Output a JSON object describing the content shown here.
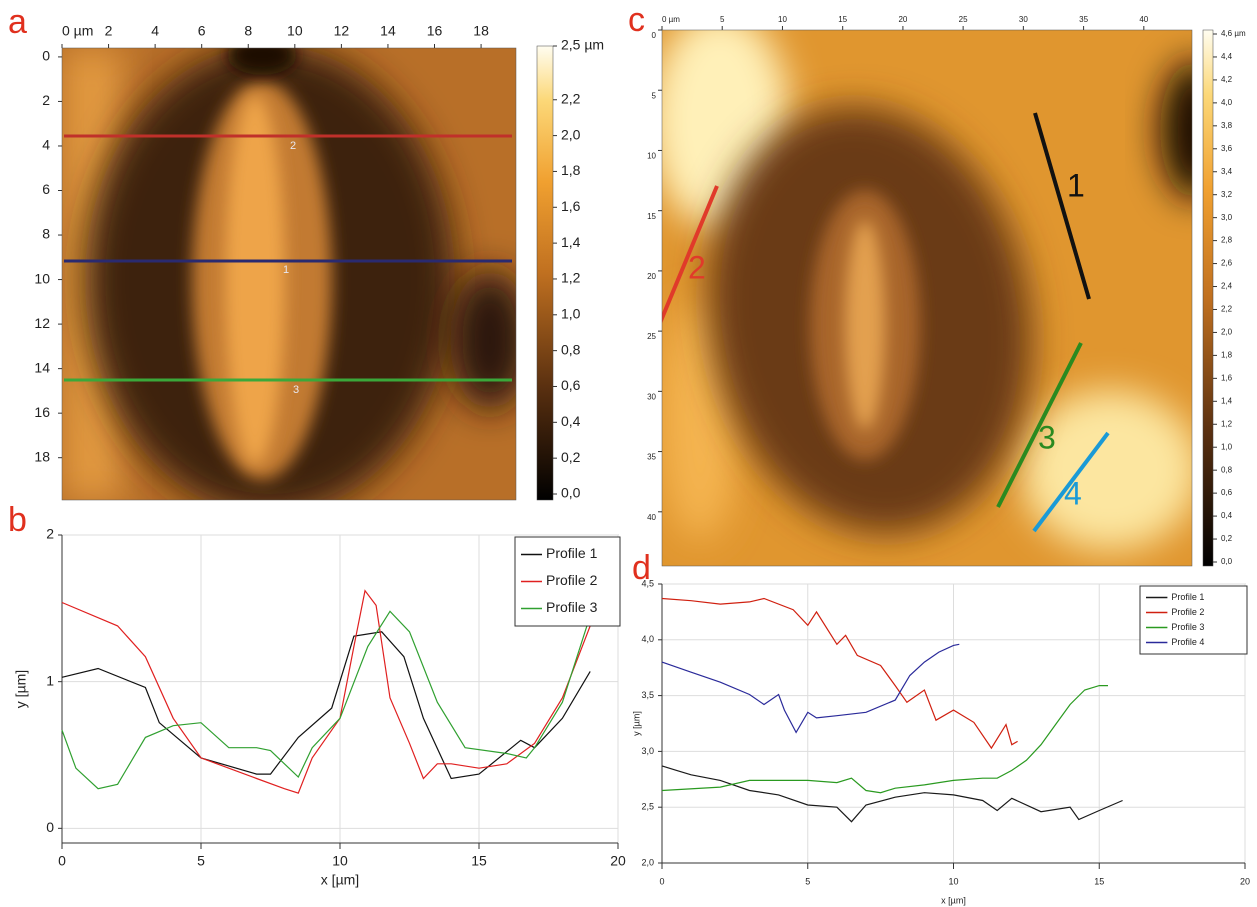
{
  "chart_data": [
    {
      "type": "heatmap",
      "panel": "a",
      "xlim": [
        0,
        19.5
      ],
      "xticks": [
        {
          "value": 0,
          "label": "0 µm"
        },
        2,
        4,
        6,
        8,
        10,
        12,
        14,
        16,
        18
      ],
      "ylim": [
        -0.4,
        19.9
      ],
      "yticks": [
        0,
        2,
        4,
        6,
        8,
        10,
        12,
        14,
        16,
        18
      ],
      "zlim": [
        0,
        2.5
      ],
      "zticks": [
        {
          "value": 2.5,
          "label": "2,5 µm"
        },
        {
          "value": 2.2,
          "label": "2,2"
        },
        {
          "value": 2.0,
          "label": "2,0"
        },
        {
          "value": 1.8,
          "label": "1,8"
        },
        {
          "value": 1.6,
          "label": "1,6"
        },
        {
          "value": 1.4,
          "label": "1,4"
        },
        {
          "value": 1.2,
          "label": "1,2"
        },
        {
          "value": 1.0,
          "label": "1,0"
        },
        {
          "value": 0.8,
          "label": "0,8"
        },
        {
          "value": 0.6,
          "label": "0,6"
        },
        {
          "value": 0.4,
          "label": "0,4"
        },
        {
          "value": 0.2,
          "label": "0,2"
        },
        {
          "value": 0.0,
          "label": "0,0"
        }
      ],
      "line_labels": [
        "2",
        "1",
        "3"
      ]
    },
    {
      "type": "line",
      "panel": "b",
      "xlabel": "x [µm]",
      "ylabel": "y [µm]",
      "xlim": [
        0,
        20
      ],
      "xticks": [
        0,
        5,
        10,
        15,
        20
      ],
      "ylim": [
        -0.1,
        2.0
      ],
      "yticks": [
        0,
        1,
        2
      ],
      "grid": true,
      "legend": "top-right",
      "series": [
        {
          "name": "Profile 1",
          "color": "#111111",
          "x": [
            0,
            1.3,
            3,
            3.5,
            5,
            7,
            7.5,
            8.5,
            9.7,
            10.5,
            11.5,
            12.3,
            13,
            14,
            15,
            16.5,
            17,
            18,
            19
          ],
          "values": [
            1.03,
            1.09,
            0.96,
            0.72,
            0.48,
            0.37,
            0.37,
            0.62,
            0.82,
            1.31,
            1.34,
            1.17,
            0.75,
            0.34,
            0.37,
            0.6,
            0.55,
            0.75,
            1.07
          ]
        },
        {
          "name": "Profile 2",
          "color": "#e02020",
          "x": [
            0,
            2,
            3,
            4,
            5,
            6,
            7,
            8,
            8.5,
            9,
            10,
            10.5,
            10.9,
            11.3,
            11.8,
            12.5,
            13,
            13.5,
            14,
            15,
            16,
            17,
            18,
            19
          ],
          "values": [
            1.54,
            1.38,
            1.17,
            0.75,
            0.48,
            0.41,
            0.34,
            0.27,
            0.24,
            0.48,
            0.75,
            1.24,
            1.62,
            1.52,
            0.89,
            0.58,
            0.34,
            0.44,
            0.44,
            0.41,
            0.44,
            0.58,
            0.89,
            1.38
          ]
        },
        {
          "name": "Profile 3",
          "color": "#30a030",
          "x": [
            0,
            0.5,
            1.3,
            2,
            3,
            4,
            5,
            6,
            7,
            7.5,
            8.5,
            9,
            10,
            11,
            11.8,
            12.5,
            13.5,
            14.5,
            16,
            16.7,
            17,
            18,
            19
          ],
          "values": [
            0.67,
            0.41,
            0.27,
            0.3,
            0.62,
            0.7,
            0.72,
            0.55,
            0.55,
            0.53,
            0.35,
            0.55,
            0.75,
            1.24,
            1.48,
            1.34,
            0.86,
            0.55,
            0.51,
            0.48,
            0.55,
            0.86,
            1.45
          ]
        }
      ]
    },
    {
      "type": "heatmap",
      "panel": "c",
      "xlim": [
        0,
        44
      ],
      "xticks": [
        {
          "value": 0,
          "label": "0 µm"
        },
        5,
        10,
        15,
        20,
        25,
        30,
        35,
        40
      ],
      "ylim": [
        0,
        44.5
      ],
      "yticks": [
        0,
        5,
        10,
        15,
        20,
        25,
        30,
        35,
        40
      ],
      "zlim": [
        0,
        4.6
      ],
      "zticks": [
        {
          "value": 4.6,
          "label": "4,6 µm"
        },
        {
          "value": 4.4,
          "label": "4,4"
        },
        {
          "value": 4.2,
          "label": "4,2"
        },
        {
          "value": 4.0,
          "label": "4,0"
        },
        {
          "value": 3.8,
          "label": "3,8"
        },
        {
          "value": 3.6,
          "label": "3,6"
        },
        {
          "value": 3.4,
          "label": "3,4"
        },
        {
          "value": 3.2,
          "label": "3,2"
        },
        {
          "value": 3.0,
          "label": "3,0"
        },
        {
          "value": 2.8,
          "label": "2,8"
        },
        {
          "value": 2.6,
          "label": "2,6"
        },
        {
          "value": 2.4,
          "label": "2,4"
        },
        {
          "value": 2.2,
          "label": "2,2"
        },
        {
          "value": 2.0,
          "label": "2,0"
        },
        {
          "value": 1.8,
          "label": "1,8"
        },
        {
          "value": 1.6,
          "label": "1,6"
        },
        {
          "value": 1.4,
          "label": "1,4"
        },
        {
          "value": 1.2,
          "label": "1,2"
        },
        {
          "value": 1.0,
          "label": "1,0"
        },
        {
          "value": 0.8,
          "label": "0,8"
        },
        {
          "value": 0.6,
          "label": "0,6"
        },
        {
          "value": 0.4,
          "label": "0,4"
        },
        {
          "value": 0.2,
          "label": "0,2"
        },
        {
          "value": 0.0,
          "label": "0,0"
        }
      ],
      "line_labels": [
        "1",
        "2",
        "3",
        "4"
      ]
    },
    {
      "type": "line",
      "panel": "d",
      "xlabel": "x [µm]",
      "ylabel": "y [µm]",
      "xlim": [
        0,
        20
      ],
      "xticks": [
        0,
        5,
        10,
        15,
        20
      ],
      "ylim": [
        2.0,
        4.5
      ],
      "yticks": [
        {
          "value": 2.0,
          "label": "2,0"
        },
        {
          "value": 2.5,
          "label": "2,5"
        },
        {
          "value": 3.0,
          "label": "3,0"
        },
        {
          "value": 3.5,
          "label": "3,5"
        },
        {
          "value": 4.0,
          "label": "4,0"
        },
        {
          "value": 4.5,
          "label": "4,5"
        }
      ],
      "grid": true,
      "legend": "top-right",
      "series": [
        {
          "name": "Profile 1",
          "color": "#1a1a1a",
          "x": [
            0,
            0.5,
            1,
            2,
            3,
            4,
            5,
            6,
            6.5,
            7,
            8,
            9,
            10,
            11,
            11.5,
            12,
            13,
            14,
            14.3,
            15,
            15.8
          ],
          "values": [
            2.87,
            2.83,
            2.79,
            2.74,
            2.65,
            2.61,
            2.52,
            2.5,
            2.37,
            2.52,
            2.59,
            2.63,
            2.61,
            2.56,
            2.47,
            2.58,
            2.46,
            2.5,
            2.39,
            2.47,
            2.56
          ]
        },
        {
          "name": "Profile 2",
          "color": "#d02010",
          "x": [
            0,
            1,
            2,
            3,
            3.5,
            4.5,
            5,
            5.3,
            6,
            6.3,
            6.7,
            7.5,
            8,
            8.4,
            9,
            9.4,
            10,
            10.7,
            11.3,
            11.8,
            12,
            12.2
          ],
          "values": [
            4.37,
            4.35,
            4.32,
            4.34,
            4.37,
            4.27,
            4.13,
            4.25,
            3.96,
            4.04,
            3.86,
            3.77,
            3.59,
            3.44,
            3.55,
            3.28,
            3.37,
            3.26,
            3.03,
            3.24,
            3.06,
            3.09
          ]
        },
        {
          "name": "Profile 3",
          "color": "#2a9a20",
          "x": [
            0,
            2,
            3,
            5,
            6,
            6.5,
            7,
            7.5,
            8,
            9,
            10,
            11,
            11.5,
            12,
            12.5,
            13,
            13.5,
            14,
            14.5,
            15,
            15.3
          ],
          "values": [
            2.65,
            2.68,
            2.74,
            2.74,
            2.72,
            2.76,
            2.65,
            2.63,
            2.67,
            2.7,
            2.74,
            2.76,
            2.76,
            2.83,
            2.92,
            3.06,
            3.24,
            3.42,
            3.55,
            3.59,
            3.59
          ]
        },
        {
          "name": "Profile 4",
          "color": "#2a2a9a",
          "x": [
            0,
            1,
            2,
            3,
            3.5,
            4,
            4.2,
            4.6,
            5,
            5.3,
            6,
            7,
            8,
            8.5,
            9,
            9.5,
            10,
            10.2
          ],
          "values": [
            3.8,
            3.71,
            3.62,
            3.51,
            3.42,
            3.51,
            3.37,
            3.17,
            3.35,
            3.3,
            3.32,
            3.35,
            3.46,
            3.68,
            3.8,
            3.89,
            3.95,
            3.96
          ]
        }
      ]
    }
  ]
}
